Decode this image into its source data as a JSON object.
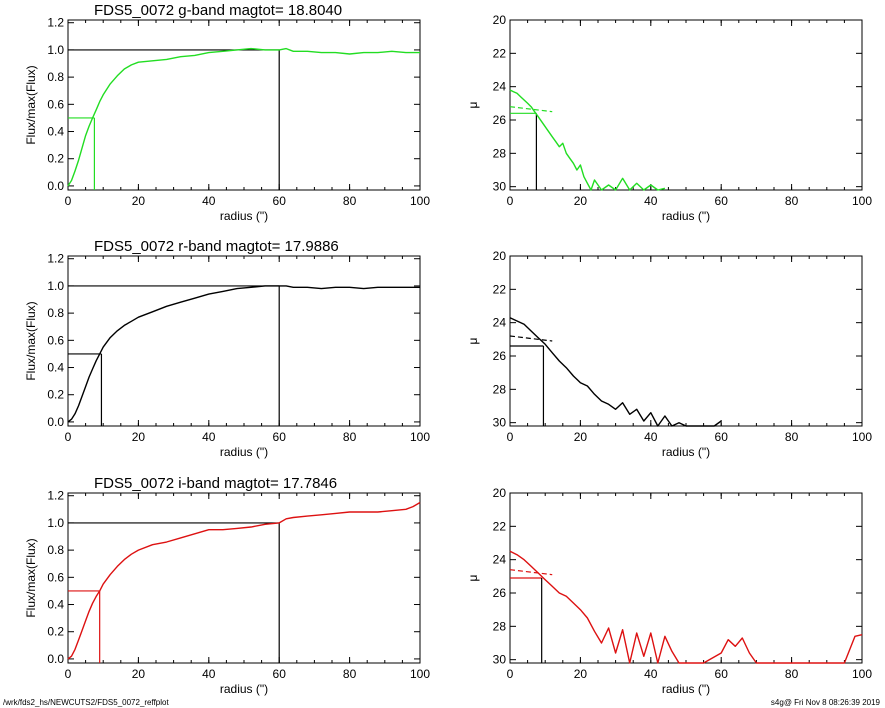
{
  "footer": {
    "left": "/wrk/fds2_hs/NEWCUTS2/FDS5_0072_reffplot",
    "right": "s4g@  Fri Nov  8 08:26:39 2019"
  },
  "chart_data": [
    {
      "type": "line",
      "title": "FDS5_0072 g-band  magtot=      18.8040",
      "xlabel": "radius (\")",
      "ylabel": "Flux/max(Flux)",
      "xlim": [
        0,
        100
      ],
      "ylim": [
        -0.03,
        1.22
      ],
      "xticks": [
        "0",
        "20",
        "40",
        "60",
        "80",
        "100"
      ],
      "yticks": [
        "0.0",
        "0.2",
        "0.4",
        "0.6",
        "0.8",
        "1.0",
        "1.2"
      ],
      "color": "#22dd22",
      "series": [
        {
          "x": [
            0,
            1,
            2,
            3,
            4,
            5,
            6,
            7,
            8,
            9,
            10,
            12,
            14,
            16,
            18,
            20,
            24,
            28,
            32,
            36,
            40,
            44,
            48,
            52,
            56,
            60,
            62,
            64,
            68,
            72,
            76,
            80,
            84,
            88,
            92,
            96,
            100
          ],
          "values": [
            0,
            0.04,
            0.11,
            0.19,
            0.28,
            0.37,
            0.44,
            0.5,
            0.56,
            0.62,
            0.67,
            0.75,
            0.81,
            0.86,
            0.89,
            0.91,
            0.92,
            0.93,
            0.95,
            0.96,
            0.98,
            0.99,
            1.0,
            1.01,
            1.0,
            1.0,
            1.01,
            0.99,
            0.99,
            0.98,
            0.98,
            0.97,
            0.98,
            0.98,
            0.99,
            0.98,
            0.98
          ]
        }
      ],
      "half_light": {
        "radius": 7.5,
        "fraction": 0.5
      },
      "total_radius": 60,
      "total_level": 1.0
    },
    {
      "type": "line",
      "title": "",
      "xlabel": "radius (\")",
      "ylabel": "μ",
      "xlim": [
        0,
        100
      ],
      "ylim": [
        30.2,
        20
      ],
      "xticks": [
        "0",
        "20",
        "40",
        "60",
        "80",
        "100"
      ],
      "yticks": [
        "20",
        "22",
        "24",
        "26",
        "28",
        "30"
      ],
      "color": "#22dd22",
      "series": [
        {
          "x": [
            0,
            1,
            2,
            3,
            4,
            5,
            6,
            7,
            8,
            9,
            10,
            11,
            12,
            13,
            14,
            15,
            16,
            17,
            18,
            19,
            20,
            21,
            22,
            23,
            24,
            26,
            28,
            30,
            32,
            34,
            36,
            38,
            40,
            42,
            44
          ],
          "values": [
            24.2,
            24.3,
            24.4,
            24.6,
            24.8,
            25.0,
            25.2,
            25.5,
            25.8,
            26.1,
            26.4,
            26.7,
            27.0,
            27.3,
            27.6,
            27.4,
            28.0,
            28.3,
            28.6,
            29.0,
            28.7,
            29.4,
            29.8,
            30.2,
            29.6,
            30.2,
            29.9,
            30.2,
            29.5,
            30.2,
            29.8,
            30.2,
            29.9,
            30.2,
            30.1
          ]
        }
      ],
      "dashed_level": 25.2,
      "reff_radius": 7.5,
      "reff_mu": 25.6
    },
    {
      "type": "line",
      "title": "FDS5_0072 r-band  magtot=      17.9886",
      "xlabel": "radius (\")",
      "ylabel": "Flux/max(Flux)",
      "xlim": [
        0,
        100
      ],
      "ylim": [
        -0.03,
        1.22
      ],
      "xticks": [
        "0",
        "20",
        "40",
        "60",
        "80",
        "100"
      ],
      "yticks": [
        "0.0",
        "0.2",
        "0.4",
        "0.6",
        "0.8",
        "1.0",
        "1.2"
      ],
      "color": "#000000",
      "series": [
        {
          "x": [
            0,
            1,
            2,
            3,
            4,
            5,
            6,
            7,
            8,
            9,
            10,
            12,
            14,
            16,
            18,
            20,
            24,
            28,
            32,
            36,
            40,
            44,
            48,
            52,
            56,
            60,
            62,
            64,
            68,
            72,
            76,
            80,
            84,
            88,
            92,
            96,
            100
          ],
          "values": [
            0,
            0.02,
            0.06,
            0.12,
            0.19,
            0.26,
            0.33,
            0.39,
            0.45,
            0.5,
            0.55,
            0.62,
            0.67,
            0.71,
            0.74,
            0.77,
            0.81,
            0.85,
            0.88,
            0.91,
            0.94,
            0.96,
            0.98,
            0.99,
            1.0,
            1.0,
            1.0,
            0.99,
            0.99,
            0.98,
            0.99,
            0.99,
            0.98,
            0.99,
            0.99,
            0.99,
            0.99
          ]
        }
      ],
      "half_light": {
        "radius": 9.5,
        "fraction": 0.5
      },
      "total_radius": 60,
      "total_level": 1.0
    },
    {
      "type": "line",
      "title": "",
      "xlabel": "radius (\")",
      "ylabel": "μ",
      "xlim": [
        0,
        100
      ],
      "ylim": [
        30.2,
        20
      ],
      "xticks": [
        "0",
        "20",
        "40",
        "60",
        "80",
        "100"
      ],
      "yticks": [
        "20",
        "22",
        "24",
        "26",
        "28",
        "30"
      ],
      "color": "#000000",
      "series": [
        {
          "x": [
            0,
            2,
            4,
            6,
            8,
            10,
            12,
            14,
            16,
            18,
            20,
            22,
            24,
            26,
            28,
            30,
            32,
            34,
            36,
            38,
            40,
            42,
            44,
            46,
            48,
            50,
            52,
            54,
            56,
            58,
            60
          ],
          "values": [
            23.7,
            23.9,
            24.1,
            24.5,
            24.9,
            25.3,
            25.8,
            26.3,
            26.7,
            27.2,
            27.6,
            27.8,
            28.3,
            28.7,
            28.9,
            29.2,
            28.8,
            29.5,
            29.2,
            29.9,
            29.4,
            30.2,
            29.6,
            30.2,
            30.0,
            30.2,
            30.2,
            30.2,
            30.2,
            30.2,
            29.9
          ]
        }
      ],
      "dashed_level": 24.8,
      "reff_radius": 9.5,
      "reff_mu": 25.4
    },
    {
      "type": "line",
      "title": "FDS5_0072 i-band  magtot=      17.7846",
      "xlabel": "radius (\")",
      "ylabel": "Flux/max(Flux)",
      "xlim": [
        0,
        100
      ],
      "ylim": [
        -0.03,
        1.22
      ],
      "xticks": [
        "0",
        "20",
        "40",
        "60",
        "80",
        "100"
      ],
      "yticks": [
        "0.0",
        "0.2",
        "0.4",
        "0.6",
        "0.8",
        "1.0",
        "1.2"
      ],
      "color": "#dd1111",
      "series": [
        {
          "x": [
            0,
            1,
            2,
            3,
            4,
            5,
            6,
            7,
            8,
            9,
            10,
            12,
            14,
            16,
            18,
            20,
            24,
            28,
            32,
            36,
            40,
            44,
            48,
            52,
            56,
            60,
            62,
            64,
            68,
            72,
            76,
            80,
            84,
            88,
            92,
            96,
            98,
            100
          ],
          "values": [
            0,
            0.02,
            0.07,
            0.14,
            0.21,
            0.28,
            0.35,
            0.41,
            0.46,
            0.5,
            0.55,
            0.62,
            0.68,
            0.73,
            0.77,
            0.8,
            0.84,
            0.86,
            0.89,
            0.92,
            0.95,
            0.95,
            0.96,
            0.97,
            0.99,
            1.0,
            1.03,
            1.04,
            1.05,
            1.06,
            1.07,
            1.08,
            1.08,
            1.08,
            1.09,
            1.1,
            1.12,
            1.15
          ]
        }
      ],
      "half_light": {
        "radius": 9.0,
        "fraction": 0.5
      },
      "total_radius": 60,
      "total_level": 1.0
    },
    {
      "type": "line",
      "title": "",
      "xlabel": "radius (\")",
      "ylabel": "μ",
      "xlim": [
        0,
        100
      ],
      "ylim": [
        30.2,
        20
      ],
      "xticks": [
        "0",
        "20",
        "40",
        "60",
        "80",
        "100"
      ],
      "yticks": [
        "20",
        "22",
        "24",
        "26",
        "28",
        "30"
      ],
      "color": "#dd1111",
      "series": [
        {
          "x": [
            0,
            2,
            4,
            6,
            8,
            10,
            12,
            14,
            16,
            18,
            20,
            22,
            24,
            26,
            28,
            30,
            32,
            34,
            36,
            38,
            40,
            42,
            44,
            46,
            48,
            50,
            55,
            60,
            62,
            64,
            66,
            68,
            70,
            75,
            80,
            85,
            90,
            95,
            98,
            100
          ],
          "values": [
            23.5,
            23.7,
            24.0,
            24.4,
            24.8,
            25.2,
            25.6,
            26.0,
            26.2,
            26.6,
            27.0,
            27.5,
            28.3,
            29.0,
            28.1,
            29.6,
            28.2,
            30.2,
            28.4,
            29.8,
            28.4,
            30.2,
            28.6,
            29.5,
            30.2,
            30.2,
            30.2,
            29.6,
            28.8,
            29.2,
            28.7,
            29.6,
            30.2,
            30.2,
            30.2,
            30.2,
            30.2,
            30.2,
            28.6,
            28.5
          ]
        }
      ],
      "dashed_level": 24.6,
      "reff_radius": 9.0,
      "reff_mu": 25.1
    }
  ]
}
